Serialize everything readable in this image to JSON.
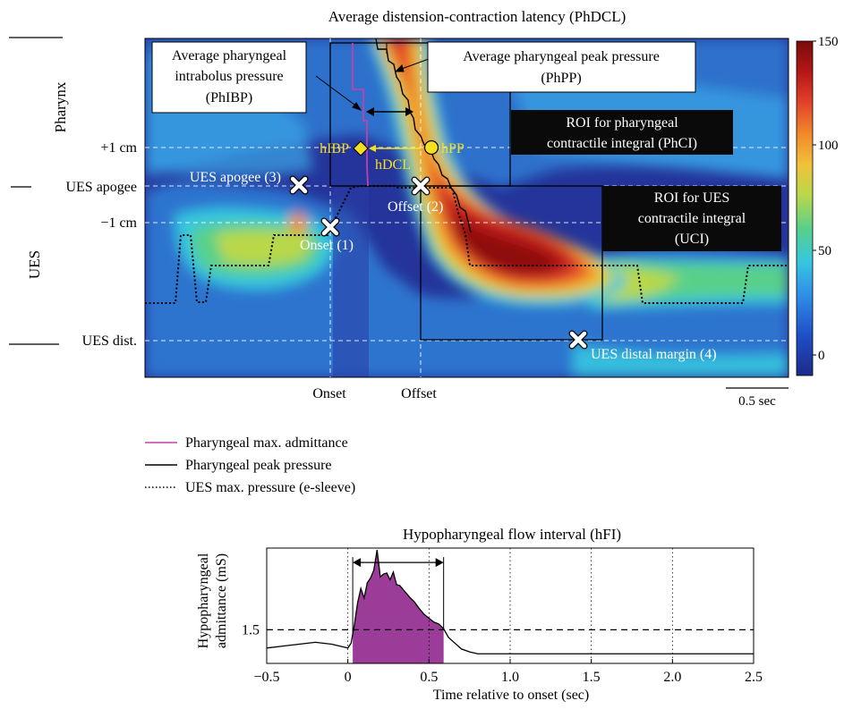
{
  "top_panel": {
    "title": "Average distension-contraction latency (PhDCL)",
    "region_labels": {
      "pharynx": "Pharynx",
      "ues": "UES"
    },
    "position_labels": {
      "plus1": "+1 cm",
      "apogee": "UES apogee",
      "minus1": "−1 cm",
      "dist": "UES dist."
    },
    "time_markers": {
      "onset": "Onset",
      "offset": "Offset"
    },
    "scale_bar": "0.5 sec",
    "colorbar": {
      "ticks": [
        "150",
        "100",
        "50",
        "0"
      ],
      "min": 0,
      "max": 150,
      "colors": [
        "#1c2a8a",
        "#1f4fc8",
        "#2f8ee6",
        "#36c6e0",
        "#58d08a",
        "#b9d84a",
        "#f0c23a",
        "#f28a2a",
        "#e0402a",
        "#b41616",
        "#7a0c0c"
      ]
    },
    "callouts": {
      "phibp": [
        "Average pharyngeal",
        "intrabolus pressure",
        "(PhIBP)"
      ],
      "phpp": [
        "Average pharyngeal peak pressure",
        "(PhPP)"
      ],
      "phci": [
        "ROI for pharyngeal",
        "contractile integral (PhCI)"
      ],
      "uci": [
        "ROI for UES",
        "contractile integral",
        "(UCI)"
      ]
    },
    "point_labels": {
      "hibp": "hIBP",
      "hdcl": "hDCL",
      "hpp": "hPP",
      "apogee": "UES apogee (3)",
      "onset": "Onset (1)",
      "offset": "Offset (2)",
      "distal": "UES distal margin (4)"
    },
    "colors": {
      "admittance_line": "#c040b0",
      "marker_fill": "#f5e020",
      "label_yellow": "#f5e020"
    }
  },
  "legend": {
    "items": [
      {
        "label": "Pharyngeal max. admittance",
        "color": "#c040b0",
        "style": "solid"
      },
      {
        "label": "Pharyngeal peak pressure",
        "color": "#000000",
        "style": "solid"
      },
      {
        "label": "UES max. pressure (e-sleeve)",
        "color": "#000000",
        "style": "dotted"
      }
    ]
  },
  "chart_data": {
    "type": "area",
    "title": "Hypopharyngeal flow interval (hFI)",
    "xlabel": "Time relative to onset (sec)",
    "ylabel": [
      "Hypopharyngeal",
      "admittance (mS)"
    ],
    "xlim": [
      -0.5,
      2.5
    ],
    "ylim": [
      1.15,
      2.35
    ],
    "xticks": [
      -0.5,
      0,
      0.5,
      1.0,
      1.5,
      2.0,
      2.5
    ],
    "xtick_labels": [
      "−0.5",
      "0",
      "0.5",
      "1.0",
      "1.5",
      "2.0",
      "2.5"
    ],
    "yticks": [
      1.5
    ],
    "ytick_labels": [
      "1.5"
    ],
    "threshold": 1.5,
    "flow_interval": [
      0.03,
      0.59
    ],
    "fill_color": "#9b3d98",
    "series": [
      {
        "x": [
          -0.5,
          -0.4,
          -0.3,
          -0.2,
          -0.1,
          -0.05,
          0.0,
          0.02,
          0.04,
          0.06,
          0.08,
          0.1,
          0.12,
          0.14,
          0.16,
          0.18,
          0.2,
          0.22,
          0.24,
          0.26,
          0.28,
          0.3,
          0.32,
          0.35,
          0.38,
          0.41,
          0.44,
          0.47,
          0.5,
          0.53,
          0.56,
          0.59,
          0.62,
          0.66,
          0.7,
          0.75,
          0.8,
          1.0,
          1.5,
          2.0,
          2.5
        ],
        "y": [
          1.31,
          1.33,
          1.35,
          1.37,
          1.35,
          1.33,
          1.31,
          1.36,
          1.55,
          1.78,
          1.93,
          1.83,
          1.99,
          2.04,
          2.12,
          2.33,
          2.05,
          2.08,
          2.09,
          2.02,
          2.1,
          1.97,
          1.96,
          1.9,
          1.84,
          1.79,
          1.72,
          1.66,
          1.62,
          1.58,
          1.56,
          1.51,
          1.42,
          1.36,
          1.3,
          1.27,
          1.25,
          1.25,
          1.25,
          1.25,
          1.25
        ]
      }
    ]
  }
}
